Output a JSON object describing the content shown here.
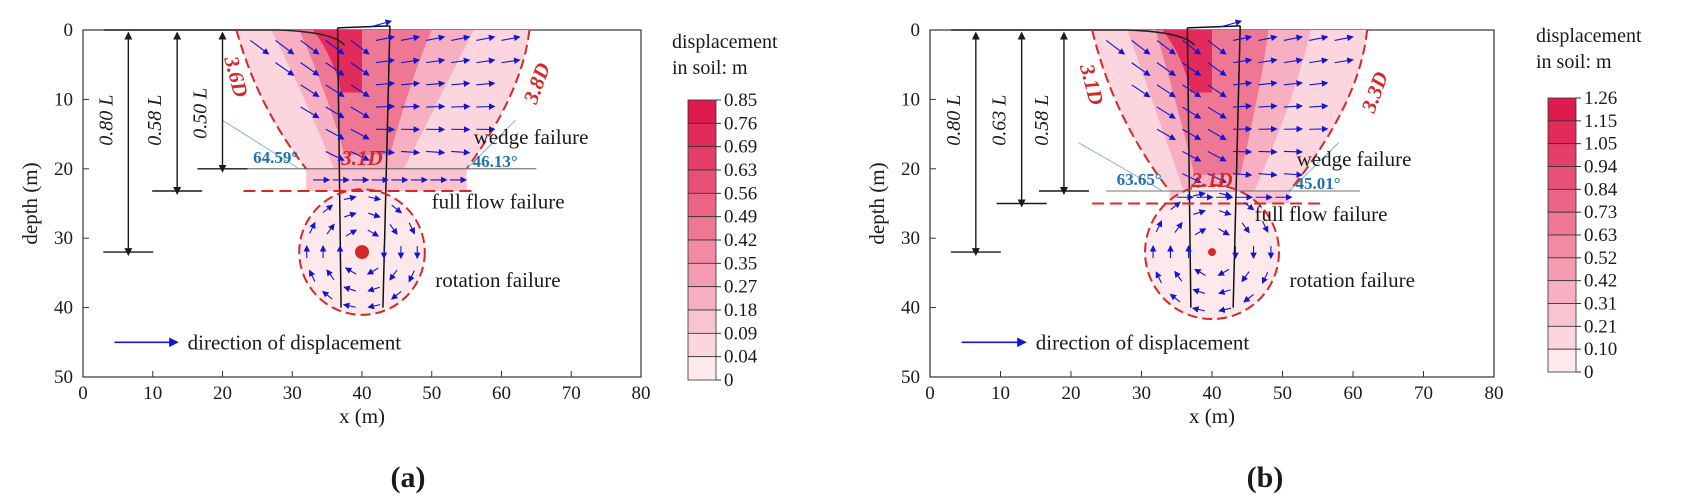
{
  "colors": {
    "arrow": "#1414d2",
    "boundary": "#d62828",
    "angle_text": "#1f6fb2",
    "text": "#1a1a1a",
    "scale": [
      "#ffffff",
      "#fde8ec",
      "#fbd6de",
      "#f9c3cf",
      "#f6b0c1",
      "#f49db2",
      "#f18aa3",
      "#ee7794",
      "#eb6486",
      "#e85177",
      "#e53e68",
      "#e22b5a",
      "#de1a4e"
    ]
  },
  "chart_data": [
    {
      "panel_label": "(a)",
      "panel_letter": "a",
      "type": "heatmap",
      "xlabel": "x (m)",
      "ylabel": "depth (m)",
      "xlim": [
        0,
        80
      ],
      "ylim": [
        0,
        50
      ],
      "xticks": [
        "0",
        "10",
        "20",
        "30",
        "40",
        "50",
        "60",
        "70",
        "80"
      ],
      "yticks": [
        "0",
        "10",
        "20",
        "30",
        "40",
        "50"
      ],
      "legend_title": [
        "displacement",
        "in soil: m"
      ],
      "colorbar_values": [
        "0.85",
        "0.76",
        "0.69",
        "0.63",
        "0.56",
        "0.49",
        "0.42",
        "0.35",
        "0.27",
        "0.18",
        "0.09",
        "0.04",
        "0"
      ],
      "pile": {
        "x_left": 37,
        "x_right": 43,
        "length": 40
      },
      "depth_marks": [
        {
          "label": "0.80 L",
          "x": 6.5,
          "depth": 32
        },
        {
          "label": "0.58 L",
          "x": 13.5,
          "depth": 23.2
        },
        {
          "label": "0.50 L",
          "x": 20,
          "depth": 20
        }
      ],
      "wedge": {
        "depth": 20,
        "left_x": 32,
        "right_x": 55,
        "left_top_x": 22,
        "right_top_x": 64,
        "left_width_label": "3.6D",
        "right_width_label": "3.8D",
        "base_label": "3.1D"
      },
      "angles": {
        "left": "64.59°",
        "right": "46.13°"
      },
      "flow_depth": 23.2,
      "circle": {
        "cx": 40,
        "cy": 32,
        "r": 9,
        "dot_size": "large"
      },
      "annotations": {
        "wedge": "wedge failure",
        "flow": "full flow failure",
        "rotation": "rotation failure",
        "legend": "direction of displacement"
      }
    },
    {
      "panel_label": "(b)",
      "panel_letter": "b",
      "type": "heatmap",
      "xlabel": "x (m)",
      "ylabel": "depth (m)",
      "xlim": [
        0,
        80
      ],
      "ylim": [
        0,
        50
      ],
      "xticks": [
        "0",
        "10",
        "20",
        "30",
        "40",
        "50",
        "60",
        "70",
        "80"
      ],
      "yticks": [
        "0",
        "10",
        "20",
        "30",
        "40",
        "50"
      ],
      "legend_title": [
        "displacement",
        "in soil: m"
      ],
      "colorbar_values": [
        "1.26",
        "1.15",
        "1.05",
        "0.94",
        "0.84",
        "0.73",
        "0.63",
        "0.52",
        "0.42",
        "0.31",
        "0.21",
        "0.10",
        "0"
      ],
      "pile": {
        "x_left": 37,
        "x_right": 43,
        "length": 40
      },
      "depth_marks": [
        {
          "label": "0.80 L",
          "x": 6.5,
          "depth": 32
        },
        {
          "label": "0.63 L",
          "x": 13,
          "depth": 25
        },
        {
          "label": "0.58 L",
          "x": 19,
          "depth": 23.2
        }
      ],
      "wedge": {
        "depth": 23.2,
        "left_x": 34,
        "right_x": 51,
        "left_top_x": 23,
        "right_top_x": 62,
        "left_width_label": "3.1D",
        "right_width_label": "3.3D",
        "base_label": "2.1D"
      },
      "angles": {
        "left": "63.65°",
        "right": "45.01°"
      },
      "flow_depth": 25,
      "circle": {
        "cx": 40,
        "cy": 32,
        "r": 9.5,
        "dot_size": "small"
      },
      "annotations": {
        "wedge": "wedge failure",
        "flow": "full flow failure",
        "rotation": "rotation failure",
        "legend": "direction of displacement"
      }
    }
  ]
}
